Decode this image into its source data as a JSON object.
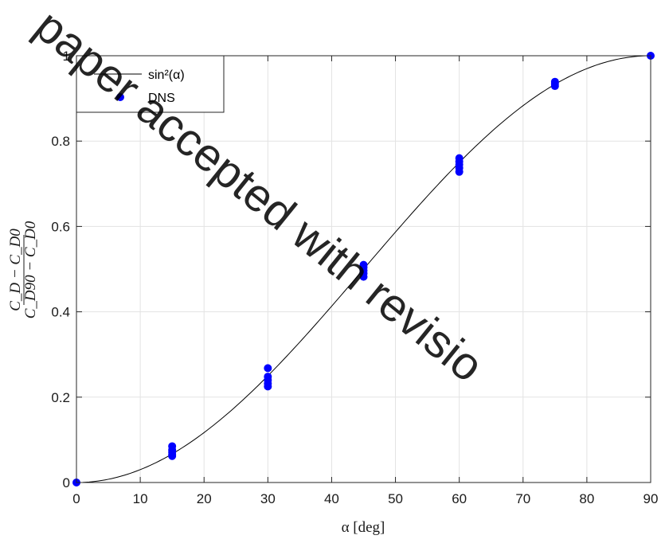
{
  "chart_data": {
    "type": "scatter",
    "xlabel": "α [deg]",
    "ylabel": {
      "numerator": "C_D − C_D0",
      "denominator": "C_D90 − C_D0"
    },
    "xlim": [
      0,
      90
    ],
    "ylim": [
      0,
      1
    ],
    "xticks": [
      0,
      10,
      20,
      30,
      40,
      50,
      60,
      70,
      80,
      90
    ],
    "yticks": [
      0,
      0.2,
      0.4,
      0.6,
      0.8,
      1
    ],
    "xtick_labels": [
      "0",
      "10",
      "20",
      "30",
      "40",
      "50",
      "60",
      "70",
      "80",
      "90"
    ],
    "ytick_labels": [
      "0",
      "0.2",
      "0.4",
      "0.6",
      "0.8",
      "1"
    ],
    "grid": true,
    "legend_position": "top-left",
    "series": [
      {
        "name": "sin²(α)",
        "kind": "line",
        "function": "sin^2",
        "color": "#000000"
      },
      {
        "name": "DNS",
        "kind": "scatter",
        "color": "#0000ff",
        "points": [
          {
            "x": 0,
            "y": 0.0
          },
          {
            "x": 15,
            "y": 0.062
          },
          {
            "x": 15,
            "y": 0.066
          },
          {
            "x": 15,
            "y": 0.071
          },
          {
            "x": 15,
            "y": 0.076
          },
          {
            "x": 15,
            "y": 0.085
          },
          {
            "x": 30,
            "y": 0.225
          },
          {
            "x": 30,
            "y": 0.232
          },
          {
            "x": 30,
            "y": 0.24
          },
          {
            "x": 30,
            "y": 0.248
          },
          {
            "x": 30,
            "y": 0.268
          },
          {
            "x": 45,
            "y": 0.482
          },
          {
            "x": 45,
            "y": 0.49
          },
          {
            "x": 45,
            "y": 0.497
          },
          {
            "x": 45,
            "y": 0.504
          },
          {
            "x": 45,
            "y": 0.51
          },
          {
            "x": 60,
            "y": 0.728
          },
          {
            "x": 60,
            "y": 0.737
          },
          {
            "x": 60,
            "y": 0.745
          },
          {
            "x": 60,
            "y": 0.752
          },
          {
            "x": 60,
            "y": 0.76
          },
          {
            "x": 75,
            "y": 0.929
          },
          {
            "x": 75,
            "y": 0.934
          },
          {
            "x": 75,
            "y": 0.939
          },
          {
            "x": 90,
            "y": 1.0
          }
        ]
      }
    ]
  },
  "watermark": "paper accepted with revisio"
}
